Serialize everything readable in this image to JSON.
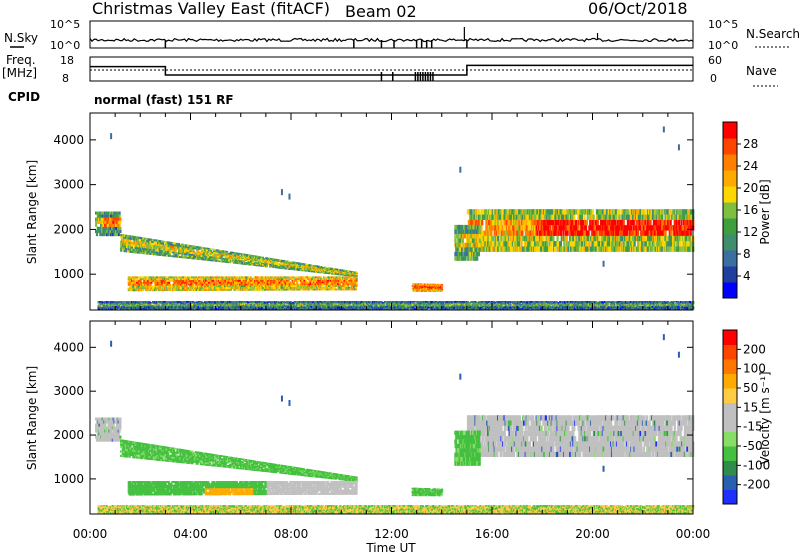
{
  "header": {
    "title": "Christmas Valley East (fitACF)",
    "beam": "Beam 02",
    "date": "06/Oct/2018"
  },
  "panels": {
    "nsky_label": "N.Sky",
    "nsky_ticks": [
      "10^5",
      "10^0"
    ],
    "nsearch_label": "N.Search",
    "nsearch_ticks": [
      "10^5",
      "10^0"
    ],
    "freq_label": "Freq.",
    "freq_unit": "[MHz]",
    "freq_ticks": [
      "18",
      "8"
    ],
    "nave_label": "Nave",
    "nave_ticks": [
      "60",
      "0"
    ],
    "cpid_label": "CPID",
    "cpid_value": "normal (fast) 151 RF"
  },
  "colors": {
    "power": [
      "#0000ff",
      "#1f3f9f",
      "#3a6fa0",
      "#3e8e6e",
      "#3f9f3f",
      "#7fbf3f",
      "#ffd700",
      "#ffaa00",
      "#ff7f00",
      "#ff4400",
      "#ff0000"
    ],
    "velocity": [
      "#1f2fff",
      "#2a5faf",
      "#308c4a",
      "#44c040",
      "#88dd66",
      "#c0c0c0",
      "#c0c0c0",
      "#ffcc44",
      "#ffaa00",
      "#ff7700",
      "#ff4400",
      "#ff0000"
    ]
  },
  "chart_data": [
    {
      "type": "heatmap",
      "name": "power",
      "ylabel": "Slant Range [km]",
      "yticks": [
        1000,
        2000,
        3000,
        4000
      ],
      "ylim": [
        200,
        4600
      ],
      "xticks": [
        "00:00",
        "04:00",
        "08:00",
        "12:00",
        "16:00",
        "20:00",
        "00:00"
      ],
      "xlim_hours": [
        0,
        24
      ],
      "colorbar_label": "Power [dB]",
      "colorbar_ticks": [
        "28",
        "24",
        "20",
        "16",
        "12",
        "8",
        "4"
      ]
    },
    {
      "type": "heatmap",
      "name": "velocity",
      "ylabel": "Slant Range [km]",
      "yticks": [
        1000,
        2000,
        3000,
        4000
      ],
      "ylim": [
        200,
        4600
      ],
      "xticks": [
        "00:00",
        "04:00",
        "08:00",
        "12:00",
        "16:00",
        "20:00",
        "00:00"
      ],
      "xlabel": "Time UT",
      "colorbar_label": "Velocity [m s⁻¹]",
      "colorbar_ticks": [
        "200",
        "100",
        "50",
        "15",
        "-15",
        "-50",
        "-100",
        "-200"
      ]
    }
  ],
  "frequency": {
    "hours": [
      0,
      3,
      3,
      15,
      15,
      24
    ],
    "mhz": [
      14,
      14,
      10.5,
      10.5,
      14.5,
      14.5
    ]
  }
}
